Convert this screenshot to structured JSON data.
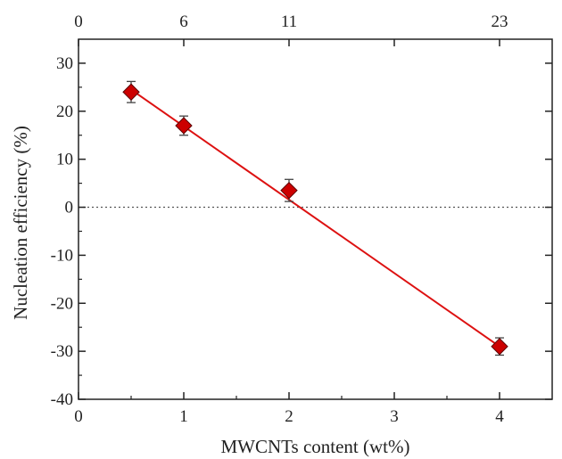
{
  "chart_data": {
    "type": "scatter",
    "xlabel": "MWCNTs content (wt%)",
    "ylabel": "Nucleation efficiency (%)",
    "xlim": [
      0,
      4.5
    ],
    "ylim": [
      -40,
      35
    ],
    "x_ticks": [
      "0",
      "1",
      "2",
      "3",
      "4"
    ],
    "y_ticks": [
      "30",
      "20",
      "10",
      "0",
      "-10",
      "-20",
      "-30",
      "-40"
    ],
    "top_axis_ticks": [
      {
        "x": 0,
        "label": "0"
      },
      {
        "x": 1,
        "label": "6"
      },
      {
        "x": 2,
        "label": "11"
      },
      {
        "x": 4,
        "label": "23"
      }
    ],
    "series": [
      {
        "marker": "diamond",
        "x": [
          0.5,
          1,
          2,
          4
        ],
        "y": [
          24,
          17,
          3.5,
          -29
        ],
        "yerr": [
          2.2,
          2.0,
          2.3,
          1.8
        ]
      }
    ],
    "fit_line": {
      "x": [
        0.5,
        4
      ],
      "y": [
        24.5,
        -29
      ]
    },
    "reference_line": {
      "y": 0,
      "style": "dotted"
    },
    "colors": {
      "marker": "#cc0000",
      "marker_edge": "#5a0000",
      "fit_line": "#dd1111",
      "axis": "#222222",
      "errorbar": "#444444",
      "reference": "#555555"
    }
  }
}
